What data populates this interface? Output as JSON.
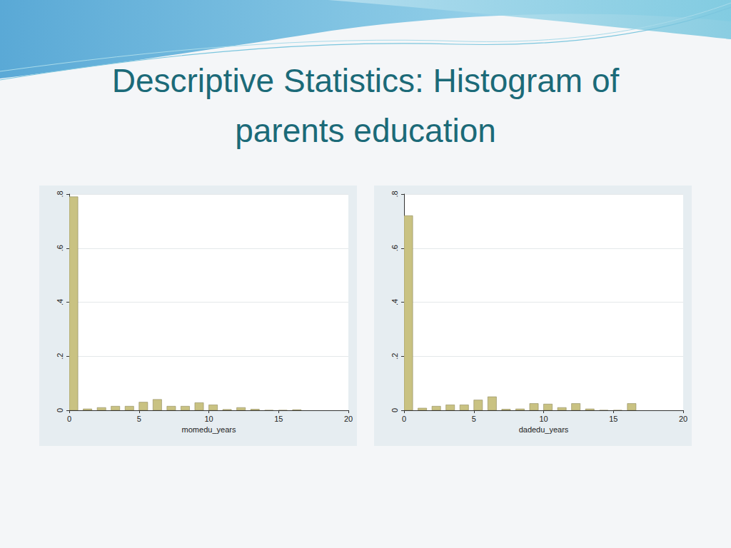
{
  "slide": {
    "title": "Descriptive Statistics: Histogram of\nparents education"
  },
  "chart_data": [
    {
      "type": "histogram",
      "x_label": "momedu_years",
      "bins": [
        0,
        1,
        2,
        3,
        4,
        5,
        6,
        7,
        8,
        9,
        10,
        11,
        12,
        13,
        14,
        15,
        16,
        17
      ],
      "values": [
        0.79,
        0.005,
        0.01,
        0.015,
        0.015,
        0.03,
        0.04,
        0.015,
        0.015,
        0.028,
        0.02,
        0.003,
        0.01,
        0.004,
        0,
        0,
        0.002
      ],
      "color": "#c9c282",
      "xlim": [
        0,
        20
      ],
      "xticks": [
        0,
        5,
        10,
        15,
        20
      ],
      "ylim": [
        0,
        0.8
      ],
      "yticks": [
        0,
        {
          "value": 0.2,
          "label": ".2"
        },
        {
          "value": 0.4,
          "label": ".4"
        },
        {
          "value": 0.6,
          "label": ".6"
        },
        {
          "value": 0.8,
          "label": ".8"
        }
      ],
      "grid": true
    },
    {
      "type": "histogram",
      "x_label": "dadedu_years",
      "bins": [
        0,
        1,
        2,
        3,
        4,
        5,
        6,
        7,
        8,
        9,
        10,
        11,
        12,
        13,
        14,
        15,
        16,
        17
      ],
      "values": [
        0.72,
        0.008,
        0.015,
        0.02,
        0.02,
        0.038,
        0.05,
        0.004,
        0.005,
        0.025,
        0.023,
        0.01,
        0.025,
        0.005,
        0,
        0,
        0.025
      ],
      "color": "#c9c282",
      "xlim": [
        0,
        20
      ],
      "xticks": [
        0,
        5,
        10,
        15,
        20
      ],
      "ylim": [
        0,
        0.8
      ],
      "yticks": [
        0,
        {
          "value": 0.2,
          "label": ".2"
        },
        {
          "value": 0.4,
          "label": ".4"
        },
        {
          "value": 0.6,
          "label": ".6"
        },
        {
          "value": 0.8,
          "label": ".8"
        }
      ],
      "grid": true
    }
  ]
}
